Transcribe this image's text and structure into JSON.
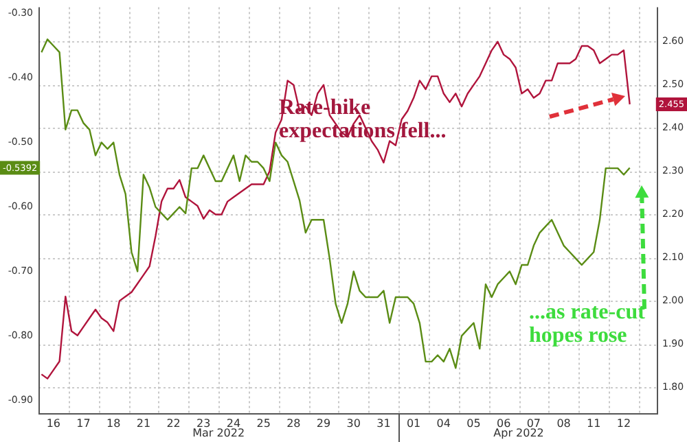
{
  "chart_data": {
    "type": "line",
    "marker": "none",
    "grid": true,
    "categories": [
      null,
      null,
      "16",
      null,
      null,
      null,
      null,
      "17",
      null,
      null,
      null,
      null,
      "18",
      null,
      null,
      null,
      null,
      "21",
      null,
      null,
      null,
      null,
      "22",
      null,
      null,
      null,
      null,
      "23",
      null,
      null,
      null,
      null,
      "24",
      null,
      null,
      null,
      null,
      "25",
      null,
      null,
      null,
      null,
      "28",
      null,
      null,
      null,
      null,
      "29",
      null,
      null,
      null,
      null,
      "30",
      null,
      null,
      null,
      null,
      "31",
      null,
      null,
      null,
      null,
      "01",
      null,
      null,
      null,
      null,
      "04",
      null,
      null,
      null,
      null,
      "05",
      null,
      null,
      null,
      null,
      "06",
      null,
      null,
      null,
      null,
      "07",
      null,
      null,
      null,
      null,
      "08",
      null,
      null,
      null,
      null,
      "11",
      null,
      null,
      null,
      null,
      "12",
      null,
      null,
      null,
      null,
      null
    ],
    "ylim": [
      -0.92,
      -0.29
    ],
    "yticks": [
      {
        "value": -0.9,
        "label": "-0.90"
      },
      {
        "value": -0.8,
        "label": "-0.80"
      },
      {
        "value": -0.7,
        "label": "-0.70"
      },
      {
        "value": -0.6,
        "label": "-0.60"
      },
      {
        "value": -0.5,
        "label": "-0.50"
      },
      {
        "value": -0.4,
        "label": "-0.40"
      },
      {
        "value": -0.3,
        "label": "-0.30"
      }
    ],
    "y2lim": [
      1.74,
      2.68
    ],
    "y2ticks": [
      {
        "value": 1.8,
        "label": "1.80"
      },
      {
        "value": 1.9,
        "label": "1.90"
      },
      {
        "value": 2.0,
        "label": "2.00"
      },
      {
        "value": 2.1,
        "label": "2.10"
      },
      {
        "value": 2.2,
        "label": "2.20"
      },
      {
        "value": 2.3,
        "label": "2.30"
      },
      {
        "value": 2.4,
        "label": "2.40"
      },
      {
        "value": 2.5,
        "label": "2.50"
      },
      {
        "value": 2.6,
        "label": "2.60"
      }
    ],
    "annotations": [
      "Rate-hike expectations fell...",
      "...as rate-cut hopes rose",
      "Mar 2022",
      "Apr 2022",
      "-0.5392",
      "2.455"
    ],
    "series": [
      {
        "color": "#5a8c14",
        "axis": "y",
        "values": [
          -0.36,
          -0.34,
          -0.35,
          -0.36,
          -0.48,
          -0.45,
          -0.45,
          -0.47,
          -0.48,
          -0.52,
          -0.5,
          -0.51,
          -0.5,
          -0.55,
          -0.58,
          -0.67,
          -0.7,
          -0.55,
          -0.57,
          -0.6,
          -0.61,
          -0.62,
          -0.61,
          -0.6,
          -0.61,
          -0.54,
          -0.54,
          -0.52,
          -0.54,
          -0.56,
          -0.56,
          -0.54,
          -0.52,
          -0.56,
          -0.52,
          -0.53,
          -0.53,
          -0.54,
          -0.56,
          -0.5,
          -0.52,
          -0.53,
          -0.56,
          -0.59,
          -0.64,
          -0.62,
          -0.62,
          -0.62,
          -0.68,
          -0.75,
          -0.78,
          -0.75,
          -0.7,
          -0.73,
          -0.74,
          -0.74,
          -0.74,
          -0.73,
          -0.78,
          -0.74,
          -0.74,
          -0.74,
          -0.75,
          -0.78,
          -0.84,
          -0.84,
          -0.83,
          -0.84,
          -0.82,
          -0.85,
          -0.8,
          -0.79,
          -0.78,
          -0.82,
          -0.72,
          -0.74,
          -0.72,
          -0.71,
          -0.7,
          -0.72,
          -0.69,
          -0.69,
          -0.66,
          -0.64,
          -0.63,
          -0.62,
          -0.64,
          -0.66,
          -0.67,
          -0.68,
          -0.69,
          -0.68,
          -0.67,
          -0.62,
          -0.54,
          -0.54,
          -0.54,
          -0.55,
          -0.5392,
          null,
          null,
          null,
          null
        ]
      },
      {
        "color": "#b0143c",
        "axis": "y2",
        "values": [
          1.83,
          1.82,
          1.84,
          1.86,
          2.01,
          1.93,
          1.92,
          1.94,
          1.96,
          1.98,
          1.96,
          1.95,
          1.93,
          2.0,
          2.01,
          2.02,
          2.04,
          2.06,
          2.08,
          2.15,
          2.23,
          2.26,
          2.26,
          2.28,
          2.24,
          2.23,
          2.22,
          2.19,
          2.21,
          2.2,
          2.2,
          2.23,
          2.24,
          2.25,
          2.26,
          2.27,
          2.27,
          2.27,
          2.3,
          2.39,
          2.42,
          2.51,
          2.5,
          2.44,
          2.45,
          2.43,
          2.48,
          2.5,
          2.43,
          2.41,
          2.39,
          2.38,
          2.41,
          2.43,
          2.4,
          2.37,
          2.35,
          2.32,
          2.37,
          2.36,
          2.42,
          2.44,
          2.47,
          2.51,
          2.49,
          2.52,
          2.52,
          2.48,
          2.46,
          2.48,
          2.45,
          2.48,
          2.5,
          2.52,
          2.55,
          2.58,
          2.6,
          2.57,
          2.56,
          2.54,
          2.48,
          2.49,
          2.47,
          2.48,
          2.51,
          2.51,
          2.55,
          2.55,
          2.55,
          2.56,
          2.59,
          2.59,
          2.58,
          2.55,
          2.56,
          2.57,
          2.57,
          2.58,
          2.455,
          null,
          null,
          null,
          null
        ]
      }
    ]
  }
}
